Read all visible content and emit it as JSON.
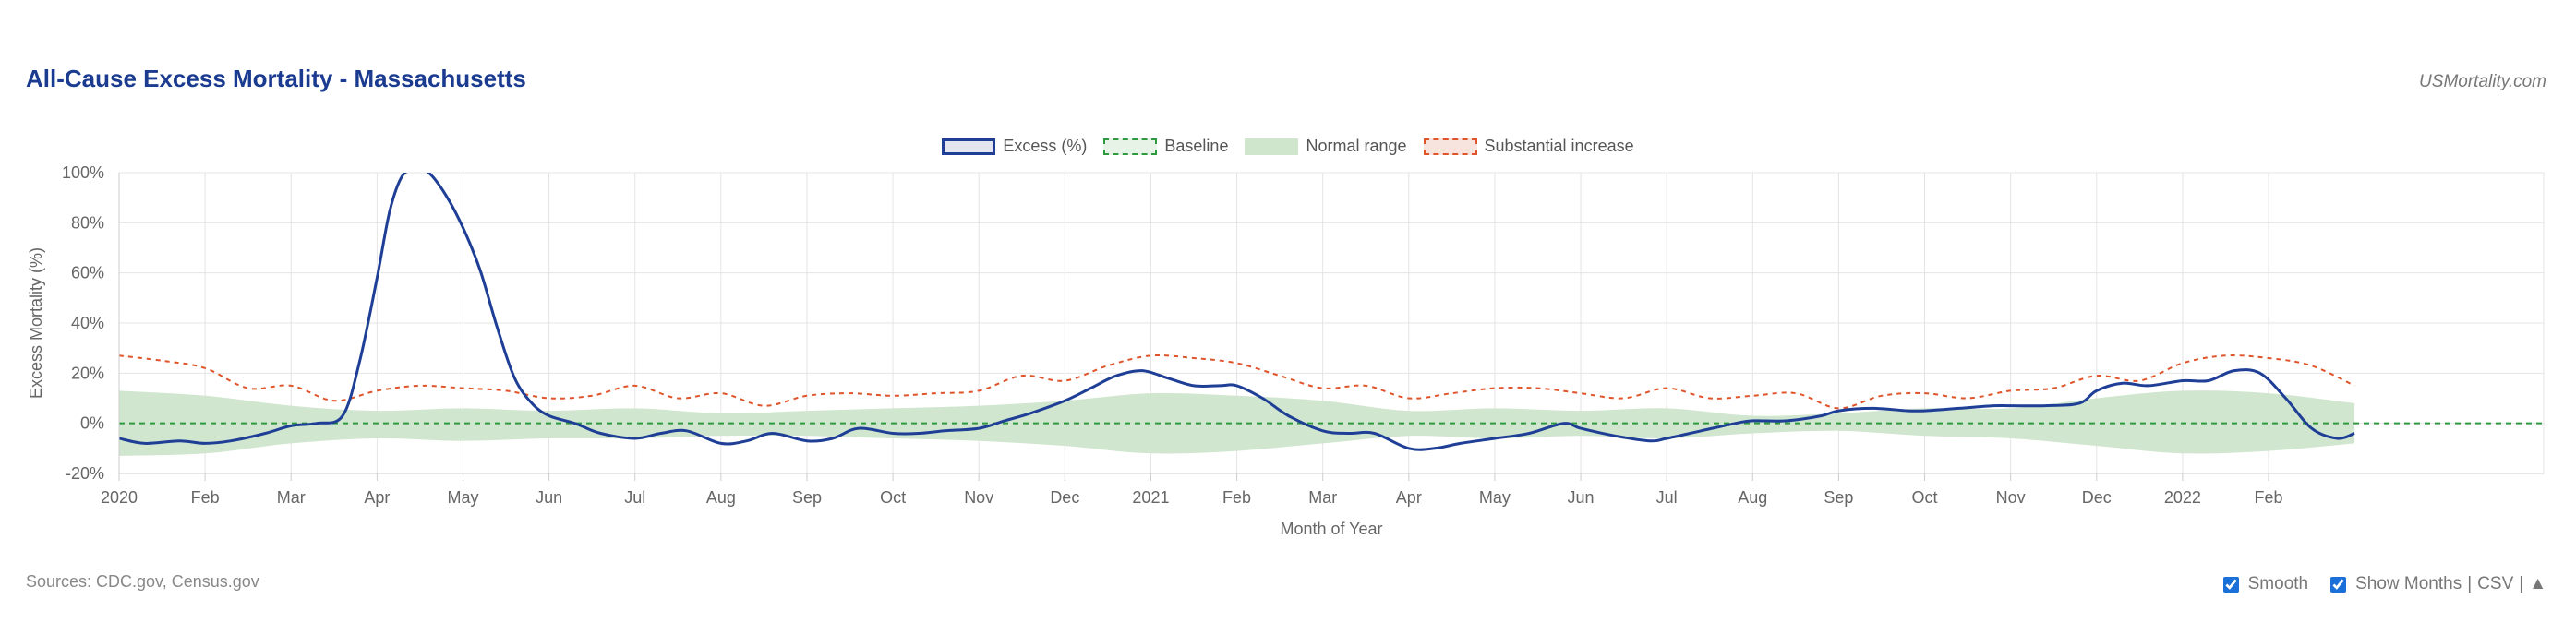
{
  "header": {
    "title": "All-Cause Excess Mortality - Massachusetts",
    "brand": "USMortality.com"
  },
  "legend": {
    "excess": "Excess (%)",
    "baseline": "Baseline",
    "normal": "Normal range",
    "substantial": "Substantial increase"
  },
  "colors": {
    "excess": "#1f3f96",
    "baseline": "#2e9a3e",
    "normal": "#cfe5cc",
    "substantial": "#e0542a",
    "title": "#1a3b8f"
  },
  "footer": {
    "sources": "Sources: CDC.gov, Census.gov",
    "smooth_label": "Smooth",
    "show_months_label": "Show Months",
    "csv_label": "CSV",
    "separator": "|",
    "up_icon": "▲"
  },
  "chart_data": {
    "type": "line",
    "xlabel": "Month of Year",
    "ylabel": "Excess Mortality (%)",
    "ylim": [
      -20,
      100
    ],
    "yticks": [
      -20,
      0,
      20,
      40,
      60,
      80,
      100
    ],
    "ytick_labels": [
      "-20%",
      "0%",
      "20%",
      "40%",
      "60%",
      "80%",
      "100%"
    ],
    "x_range_months": [
      0,
      28.2
    ],
    "xticks": [
      {
        "m": 0,
        "label": "2020"
      },
      {
        "m": 1,
        "label": "Feb"
      },
      {
        "m": 2,
        "label": "Mar"
      },
      {
        "m": 3,
        "label": "Apr"
      },
      {
        "m": 4,
        "label": "May"
      },
      {
        "m": 5,
        "label": "Jun"
      },
      {
        "m": 6,
        "label": "Jul"
      },
      {
        "m": 7,
        "label": "Aug"
      },
      {
        "m": 8,
        "label": "Sep"
      },
      {
        "m": 9,
        "label": "Oct"
      },
      {
        "m": 10,
        "label": "Nov"
      },
      {
        "m": 11,
        "label": "Dec"
      },
      {
        "m": 12,
        "label": "2021"
      },
      {
        "m": 13,
        "label": "Feb"
      },
      {
        "m": 14,
        "label": "Mar"
      },
      {
        "m": 15,
        "label": "Apr"
      },
      {
        "m": 16,
        "label": "May"
      },
      {
        "m": 17,
        "label": "Jun"
      },
      {
        "m": 18,
        "label": "Jul"
      },
      {
        "m": 19,
        "label": "Aug"
      },
      {
        "m": 20,
        "label": "Sep"
      },
      {
        "m": 21,
        "label": "Oct"
      },
      {
        "m": 22,
        "label": "Nov"
      },
      {
        "m": 23,
        "label": "Dec"
      },
      {
        "m": 24,
        "label": "2022"
      },
      {
        "m": 25,
        "label": "Feb"
      }
    ],
    "baseline": 0,
    "series": [
      {
        "name": "Excess (%)",
        "x": [
          0,
          0.3,
          0.7,
          1.0,
          1.3,
          1.7,
          2.0,
          2.3,
          2.6,
          2.8,
          3.0,
          3.15,
          3.3,
          3.45,
          3.6,
          3.8,
          4.0,
          4.2,
          4.4,
          4.6,
          4.8,
          5.0,
          5.3,
          5.6,
          6.0,
          6.3,
          6.6,
          7.0,
          7.3,
          7.6,
          8.0,
          8.3,
          8.6,
          9.0,
          9.3,
          9.6,
          10.0,
          10.3,
          10.6,
          11.0,
          11.3,
          11.6,
          11.9,
          12.2,
          12.5,
          12.8,
          13.0,
          13.3,
          13.6,
          14.0,
          14.3,
          14.6,
          15.0,
          15.3,
          15.6,
          16.0,
          16.4,
          16.8,
          17.0,
          17.4,
          17.8,
          18.0,
          18.4,
          18.8,
          19.0,
          19.4,
          19.8,
          20.0,
          20.4,
          20.8,
          21.0,
          21.4,
          21.8,
          22.0,
          22.4,
          22.8,
          23.0,
          23.3,
          23.6,
          24.0,
          24.3,
          24.6,
          24.9,
          25.2,
          25.5,
          25.8,
          26.0
        ],
        "values": [
          -6,
          -8,
          -7,
          -8,
          -7,
          -4,
          -1,
          0,
          3,
          25,
          58,
          85,
          99,
          103,
          100,
          91,
          78,
          61,
          38,
          18,
          8,
          3,
          0,
          -4,
          -6,
          -4,
          -3,
          -8,
          -7,
          -4,
          -7,
          -6,
          -2,
          -4,
          -4,
          -3,
          -2,
          1,
          4,
          9,
          14,
          19,
          21,
          18,
          15,
          15,
          15,
          10,
          3,
          -3,
          -4,
          -4,
          -10,
          -10,
          -8,
          -6,
          -4,
          0,
          -2,
          -5,
          -7,
          -6,
          -3,
          0,
          1,
          1,
          3,
          5,
          6,
          5,
          5,
          6,
          7,
          7,
          7,
          8,
          13,
          16,
          15,
          17,
          17,
          21,
          20,
          10,
          -2,
          -6,
          -4
        ]
      }
    ],
    "normal_range": {
      "x": [
        0,
        1,
        2,
        3,
        4,
        5,
        6,
        7,
        8,
        9,
        10,
        11,
        12,
        13,
        14,
        15,
        16,
        17,
        18,
        19,
        20,
        21,
        22,
        23,
        24,
        25,
        26
      ],
      "upper": [
        13,
        11,
        7,
        5,
        6,
        5,
        6,
        4,
        5,
        6,
        7,
        9,
        12,
        11,
        9,
        5,
        6,
        5,
        6,
        3,
        4,
        6,
        6,
        10,
        13,
        12,
        8
      ],
      "lower": [
        -13,
        -12,
        -8,
        -6,
        -7,
        -6,
        -6,
        -5,
        -5,
        -6,
        -7,
        -9,
        -12,
        -11,
        -8,
        -5,
        -6,
        -5,
        -6,
        -4,
        -3,
        -5,
        -6,
        -9,
        -12,
        -11,
        -8
      ]
    },
    "substantial_increase": {
      "x": [
        0,
        0.5,
        1,
        1.5,
        2,
        2.5,
        3,
        3.5,
        4,
        4.5,
        5,
        5.5,
        6,
        6.5,
        7,
        7.5,
        8,
        8.5,
        9,
        9.5,
        10,
        10.5,
        11,
        11.5,
        12,
        12.5,
        13,
        13.5,
        14,
        14.5,
        15,
        15.5,
        16,
        16.5,
        17,
        17.5,
        18,
        18.5,
        19,
        19.5,
        20,
        20.5,
        21,
        21.5,
        22,
        22.5,
        23,
        23.5,
        24,
        24.5,
        25,
        25.5,
        26
      ],
      "values": [
        27,
        25,
        22,
        14,
        15,
        9,
        13,
        15,
        14,
        13,
        10,
        11,
        15,
        10,
        12,
        7,
        11,
        12,
        11,
        12,
        13,
        19,
        17,
        23,
        27,
        26,
        24,
        19,
        14,
        15,
        10,
        12,
        14,
        14,
        12,
        10,
        14,
        10,
        11,
        12,
        6,
        11,
        12,
        10,
        13,
        14,
        19,
        17,
        24,
        27,
        26,
        23,
        15
      ]
    }
  }
}
